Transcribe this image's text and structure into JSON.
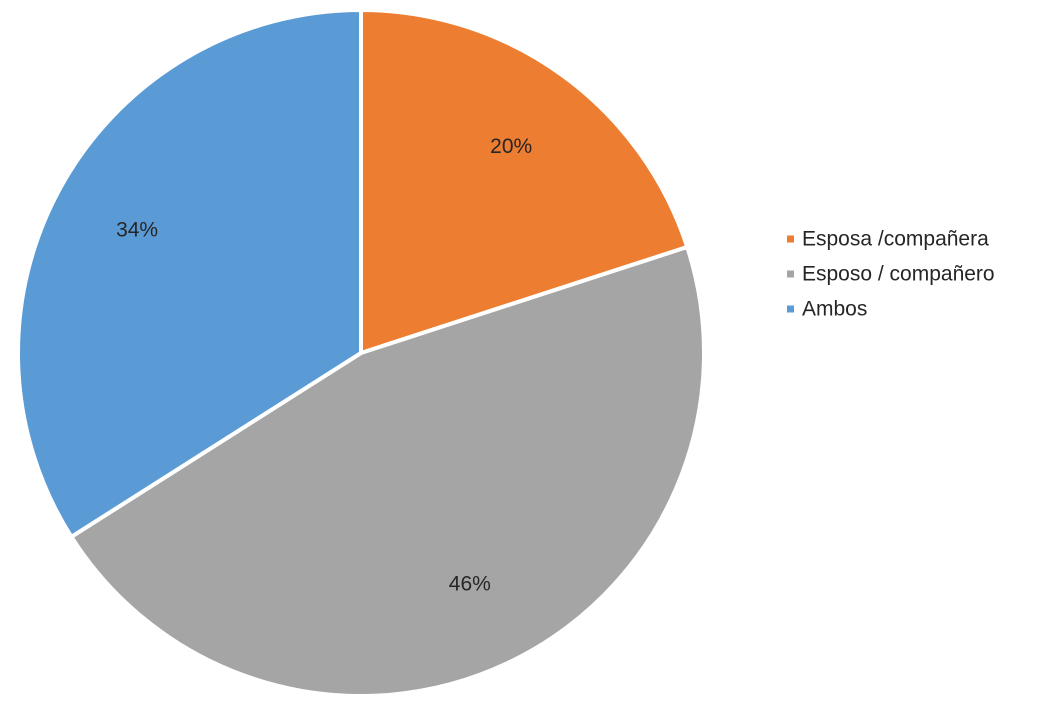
{
  "chart_data": {
    "type": "pie",
    "title": "",
    "categories": [
      "Esposa /compañera",
      "Esposo / compañero",
      "Ambos"
    ],
    "values": [
      20,
      46,
      34
    ],
    "labels": [
      "20%",
      "46%",
      "34%"
    ],
    "colors": [
      "#ED7D31",
      "#A5A5A5",
      "#5B9BD5"
    ],
    "start_angle_deg": 0,
    "direction": "clockwise",
    "legend": "right"
  }
}
